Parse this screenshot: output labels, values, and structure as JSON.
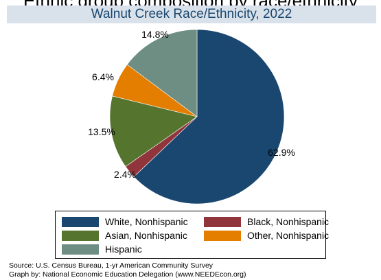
{
  "header": {
    "title_fragment": "Ethnic group composition by race/ethnicity"
  },
  "chart_data": {
    "type": "pie",
    "title": "Walnut Creek Race/Ethnicity, 2022",
    "slices": [
      {
        "name": "White, Nonhispanic",
        "value": 62.9,
        "label": "62.9%",
        "color": "#1a476f"
      },
      {
        "name": "Black, Nonhispanic",
        "value": 2.4,
        "label": "2.4%",
        "color": "#90353b"
      },
      {
        "name": "Asian, Nonhispanic",
        "value": 13.5,
        "label": "13.5%",
        "color": "#55752f"
      },
      {
        "name": "Other, Nonhispanic",
        "value": 6.4,
        "label": "6.4%",
        "color": "#e37e00"
      },
      {
        "name": "Hispanic",
        "value": 14.8,
        "label": "14.8%",
        "color": "#6e8e84"
      }
    ],
    "legend_placement": "bottom"
  },
  "legend": {
    "items": [
      {
        "label": "White, Nonhispanic",
        "color": "#1a476f"
      },
      {
        "label": "Black, Nonhispanic",
        "color": "#90353b"
      },
      {
        "label": "Asian, Nonhispanic",
        "color": "#55752f"
      },
      {
        "label": "Other, Nonhispanic",
        "color": "#e37e00"
      },
      {
        "label": "Hispanic",
        "color": "#6e8e84"
      }
    ]
  },
  "notes": {
    "source": "Source:  U.S. Census Bureau, 1-yr American Community Survey",
    "credit": "Graph by: National Economic Education Delegation (www.NEEDEcon.org)"
  }
}
